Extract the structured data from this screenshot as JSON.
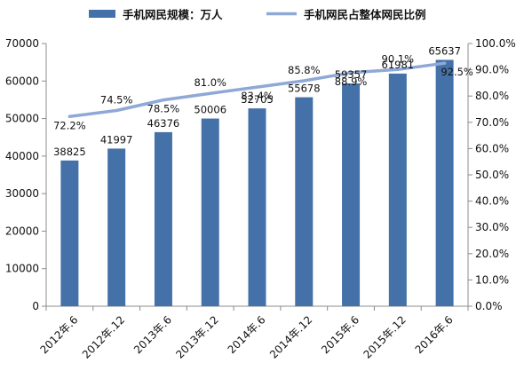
{
  "chart_data": {
    "type": "bar",
    "categories": [
      "2012年.6",
      "2012年.12",
      "2013年.6",
      "2013年.12",
      "2014年.6",
      "2014年.12",
      "2015年.6",
      "2015年.12",
      "2016年.6"
    ],
    "series": [
      {
        "name": "手机网民规模：万人",
        "type": "bar",
        "axis": "left",
        "values": [
          38825,
          41997,
          46376,
          50006,
          52705,
          55678,
          59357,
          61981,
          65637
        ],
        "labels": [
          "38825",
          "41997",
          "46376",
          "50006",
          "52705",
          "55678",
          "59357",
          "61981",
          "65637"
        ],
        "color": "#4472a8"
      },
      {
        "name": "手机网民占整体网民比例",
        "type": "line",
        "axis": "right",
        "values": [
          72.2,
          74.5,
          78.5,
          81.0,
          83.4,
          85.8,
          88.9,
          90.1,
          92.5
        ],
        "labels": [
          "72.2%",
          "74.5%",
          "78.5%",
          "81.0%",
          "83.4%",
          "85.8%",
          "88.9%",
          "90.1%",
          "92.5%"
        ],
        "color": "#8fa9d6"
      }
    ],
    "y_left": {
      "range": [
        0,
        70000
      ],
      "ticks": [
        0,
        10000,
        20000,
        30000,
        40000,
        50000,
        60000,
        70000
      ],
      "tick_labels": [
        "0",
        "10000",
        "20000",
        "30000",
        "40000",
        "50000",
        "60000",
        "70000"
      ]
    },
    "y_right": {
      "range": [
        0,
        100
      ],
      "ticks": [
        0,
        10,
        20,
        30,
        40,
        50,
        60,
        70,
        80,
        90,
        100
      ],
      "tick_labels": [
        "0.0%",
        "10.0%",
        "20.0%",
        "30.0%",
        "40.0%",
        "50.0%",
        "60.0%",
        "70.0%",
        "80.0%",
        "90.0%",
        "100.0%"
      ]
    },
    "grid": false,
    "legend_position": "top"
  }
}
